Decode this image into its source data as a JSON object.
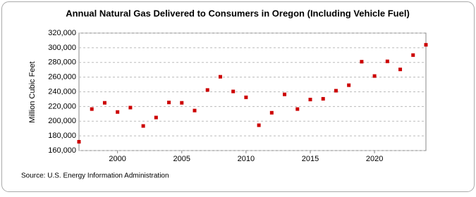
{
  "chart_data": {
    "type": "scatter",
    "title": "Annual Natural Gas Delivered to Consumers in Oregon (Including Vehicle Fuel)",
    "y_label": "Million Cubic Feet",
    "source": "Source: U.S. Energy Information Administration",
    "x": [
      1997,
      1998,
      1999,
      2000,
      2001,
      2002,
      2003,
      2004,
      2005,
      2006,
      2007,
      2008,
      2009,
      2010,
      2011,
      2012,
      2013,
      2014,
      2015,
      2016,
      2017,
      2018,
      2019,
      2020,
      2021,
      2022,
      2023,
      2024
    ],
    "series": [
      {
        "color": "#cc0000",
        "values": [
          172000,
          216500,
          225000,
          212500,
          218500,
          193500,
          205000,
          225500,
          225000,
          214500,
          242500,
          260500,
          240500,
          232500,
          194500,
          211500,
          236500,
          216500,
          229500,
          230500,
          241500,
          249000,
          281000,
          261500,
          281500,
          270500,
          290000,
          304000
        ]
      }
    ],
    "xlim": [
      1997,
      2024
    ],
    "xticks": [
      2000,
      2005,
      2010,
      2015,
      2020
    ],
    "ylim": [
      160000,
      320000
    ],
    "yticks": [
      {
        "value": 160000,
        "label": "160,000"
      },
      {
        "value": 180000,
        "label": "180,000"
      },
      {
        "value": 200000,
        "label": "200,000"
      },
      {
        "value": 220000,
        "label": "220,000"
      },
      {
        "value": 240000,
        "label": "240,000"
      },
      {
        "value": 260000,
        "label": "260,000"
      },
      {
        "value": 280000,
        "label": "280,000"
      },
      {
        "value": 300000,
        "label": "300,000"
      },
      {
        "value": 320000,
        "label": "320,000"
      }
    ],
    "grid": true
  }
}
